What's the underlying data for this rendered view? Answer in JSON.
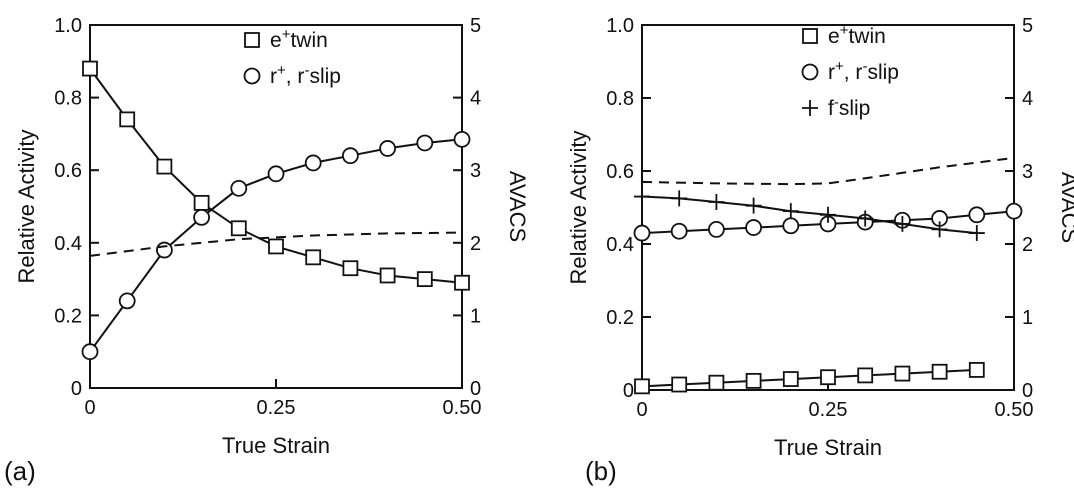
{
  "chart_data": [
    {
      "type": "line",
      "panel_label": "(a)",
      "xlabel": "True Strain",
      "ylabel": "Relative Activity",
      "y2label": "AVACS",
      "xlim": [
        0,
        0.5
      ],
      "ylim": [
        0,
        1.0
      ],
      "y2lim": [
        0,
        5
      ],
      "xticks": [
        0,
        0.25,
        0.5
      ],
      "xtick_labels": [
        "0",
        "0.25",
        "0.50"
      ],
      "yticks": [
        0,
        0.2,
        0.4,
        0.6,
        0.8,
        1.0
      ],
      "ytick_labels": [
        "0",
        "0.2",
        "0.4",
        "0.6",
        "0.8",
        "1.0"
      ],
      "y2ticks": [
        0,
        1,
        2,
        3,
        4,
        5
      ],
      "y2tick_labels": [
        "0",
        "1",
        "2",
        "3",
        "4",
        "5"
      ],
      "grid": false,
      "legend_position": "top-right",
      "series": [
        {
          "name": "e⁺twin",
          "legend_main": "e",
          "legend_sup": "+",
          "legend_rest": "twin",
          "marker": "square",
          "axis": "left",
          "x": [
            0,
            0.05,
            0.1,
            0.15,
            0.2,
            0.25,
            0.3,
            0.35,
            0.4,
            0.45,
            0.5
          ],
          "y": [
            0.88,
            0.74,
            0.61,
            0.51,
            0.44,
            0.39,
            0.36,
            0.33,
            0.31,
            0.3,
            0.29
          ]
        },
        {
          "name": "r⁺, r⁻slip",
          "legend_main": "r",
          "legend_sup": "+",
          "legend_mid": ", r",
          "legend_sup2": "-",
          "legend_rest": "slip",
          "marker": "circle",
          "axis": "left",
          "x": [
            0,
            0.05,
            0.1,
            0.15,
            0.2,
            0.25,
            0.3,
            0.35,
            0.4,
            0.45,
            0.5
          ],
          "y": [
            0.1,
            0.24,
            0.38,
            0.47,
            0.55,
            0.59,
            0.62,
            0.64,
            0.66,
            0.675,
            0.685
          ]
        },
        {
          "name": "AVACS",
          "marker": "none",
          "style": "dashed",
          "axis": "right",
          "x": [
            0,
            0.1,
            0.2,
            0.3,
            0.4,
            0.5
          ],
          "y": [
            1.82,
            1.95,
            2.05,
            2.1,
            2.13,
            2.14
          ]
        }
      ]
    },
    {
      "type": "line",
      "panel_label": "(b)",
      "xlabel": "True Strain",
      "ylabel": "Relative Activity",
      "y2label": "AVACS",
      "xlim": [
        0,
        0.5
      ],
      "ylim": [
        0,
        1.0
      ],
      "y2lim": [
        0,
        5
      ],
      "xticks": [
        0,
        0.25,
        0.5
      ],
      "xtick_labels": [
        "0",
        "0.25",
        "0.50"
      ],
      "yticks": [
        0,
        0.2,
        0.4,
        0.6,
        0.8,
        1.0
      ],
      "ytick_labels": [
        "0",
        "0.2",
        "0.4",
        "0.6",
        "0.8",
        "1.0"
      ],
      "y2ticks": [
        0,
        1,
        2,
        3,
        4,
        5
      ],
      "y2tick_labels": [
        "0",
        "1",
        "2",
        "3",
        "4",
        "5"
      ],
      "grid": false,
      "legend_position": "top-center",
      "series": [
        {
          "name": "e⁺twin",
          "legend_main": "e",
          "legend_sup": "+",
          "legend_rest": "twin",
          "marker": "square",
          "axis": "left",
          "x": [
            0,
            0.05,
            0.1,
            0.15,
            0.2,
            0.25,
            0.3,
            0.35,
            0.4,
            0.45
          ],
          "y": [
            0.01,
            0.015,
            0.02,
            0.025,
            0.03,
            0.035,
            0.04,
            0.045,
            0.05,
            0.055
          ]
        },
        {
          "name": "r⁺, r⁻slip",
          "legend_main": "r",
          "legend_sup": "+",
          "legend_mid": ", r",
          "legend_sup2": "-",
          "legend_rest": "slip",
          "marker": "circle",
          "axis": "left",
          "x": [
            0,
            0.05,
            0.1,
            0.15,
            0.2,
            0.25,
            0.3,
            0.35,
            0.4,
            0.45,
            0.5
          ],
          "y": [
            0.43,
            0.435,
            0.44,
            0.445,
            0.45,
            0.455,
            0.46,
            0.465,
            0.47,
            0.48,
            0.49
          ]
        },
        {
          "name": "f⁻slip",
          "legend_main": "f",
          "legend_sup": "-",
          "legend_rest": "slip",
          "marker": "plus",
          "axis": "left",
          "x": [
            0,
            0.05,
            0.1,
            0.15,
            0.2,
            0.25,
            0.3,
            0.35,
            0.4,
            0.45
          ],
          "y": [
            0.53,
            0.525,
            0.515,
            0.505,
            0.49,
            0.48,
            0.47,
            0.455,
            0.44,
            0.43
          ]
        },
        {
          "name": "AVACS",
          "marker": "none",
          "style": "dashed",
          "axis": "right",
          "x": [
            0,
            0.1,
            0.2,
            0.25,
            0.3,
            0.4,
            0.5
          ],
          "y": [
            2.85,
            2.83,
            2.82,
            2.83,
            2.9,
            3.05,
            3.18
          ]
        }
      ]
    }
  ]
}
